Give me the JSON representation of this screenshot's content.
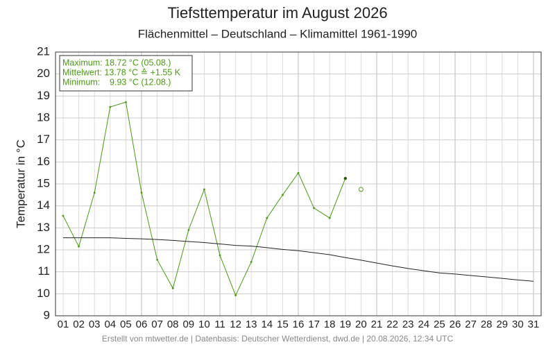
{
  "chart_data": {
    "type": "line",
    "title": "Tiefsttemperatur im August 2026",
    "subtitle": "Flächenmittel – Deutschland – Klimamittel 1961-1990",
    "y_label": "Temperatur in °C",
    "footer": "Erstellt von mtwetter.de | Datenbasis: Deutscher Wetterdienst, dwd.de | 20.08.2026, 12:34 UTC",
    "annotations": [
      "Maximum: 18.72 °C (05.08.)",
      "Mittelwert: 13.78 °C ≙ +1.55 K",
      "Minimum:    9.93 °C (12.08.)"
    ],
    "categories": [
      "01",
      "02",
      "03",
      "04",
      "05",
      "06",
      "07",
      "08",
      "09",
      "10",
      "11",
      "12",
      "13",
      "14",
      "15",
      "16",
      "17",
      "18",
      "19",
      "20",
      "21",
      "22",
      "23",
      "24",
      "25",
      "26",
      "27",
      "28",
      "29",
      "30",
      "31"
    ],
    "series": [
      {
        "color": "#4a9a10",
        "marker": "dot",
        "values": [
          13.55,
          12.15,
          14.6,
          18.5,
          18.72,
          14.6,
          11.55,
          10.25,
          12.9,
          14.75,
          11.75,
          9.93,
          11.45,
          13.45,
          14.5,
          15.5,
          13.9,
          13.45,
          15.25,
          null,
          null,
          null,
          null,
          null,
          null,
          null,
          null,
          null,
          null,
          null,
          null
        ]
      },
      {
        "color": "#4a9a10",
        "marker": "open",
        "values": [
          null,
          null,
          null,
          null,
          null,
          null,
          null,
          null,
          null,
          null,
          null,
          null,
          null,
          null,
          null,
          null,
          null,
          null,
          null,
          14.75,
          null,
          null,
          null,
          null,
          null,
          null,
          null,
          null,
          null,
          null,
          null
        ]
      },
      {
        "color": "#222222",
        "marker": "none",
        "values": [
          12.55,
          12.55,
          12.55,
          12.55,
          12.52,
          12.5,
          12.47,
          12.43,
          12.38,
          12.33,
          12.27,
          12.2,
          12.17,
          12.1,
          12.02,
          11.96,
          11.87,
          11.78,
          11.65,
          11.53,
          11.4,
          11.27,
          11.15,
          11.05,
          10.95,
          10.9,
          10.83,
          10.77,
          10.7,
          10.63,
          10.57
        ]
      }
    ],
    "ylim": [
      9,
      21
    ],
    "yticks": [
      9,
      10,
      11,
      12,
      13,
      14,
      15,
      16,
      17,
      18,
      19,
      20,
      21
    ],
    "grid": true
  }
}
